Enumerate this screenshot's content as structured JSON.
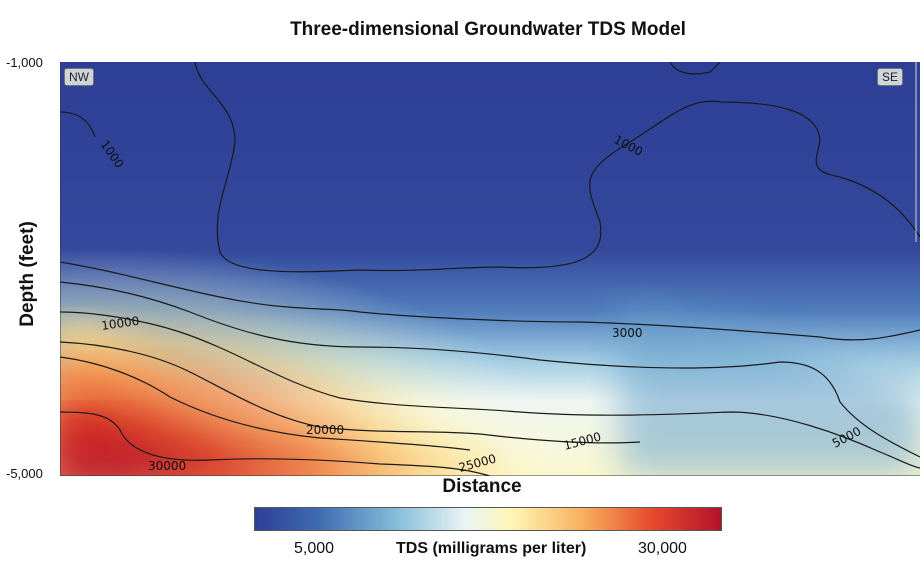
{
  "chart_data": {
    "type": "heatmap",
    "title": "Three-dimensional Groundwater TDS Model",
    "xlabel": "Distance",
    "ylabel": "Depth (feet)",
    "ylim": [
      -1000,
      -5000
    ],
    "y_tick_labels": [
      "-1,000",
      "-5,000"
    ],
    "direction_labels": {
      "left": "NW",
      "right": "SE"
    },
    "colorbar": {
      "label": "TDS (milligrams per liter)",
      "range": [
        1000,
        35000
      ],
      "tick_labels": [
        "5,000",
        "30,000"
      ],
      "tick_values": [
        5000,
        30000
      ],
      "colormap": [
        "#2e3f95",
        "#3f6db3",
        "#84bbd8",
        "#e9f4f5",
        "#fff6b6",
        "#f8b25f",
        "#e64b2d",
        "#b1122b"
      ]
    },
    "contour_labels": [
      "1000",
      "1000",
      "3000",
      "5000",
      "10000",
      "15000",
      "20000",
      "25000",
      "30000"
    ]
  }
}
